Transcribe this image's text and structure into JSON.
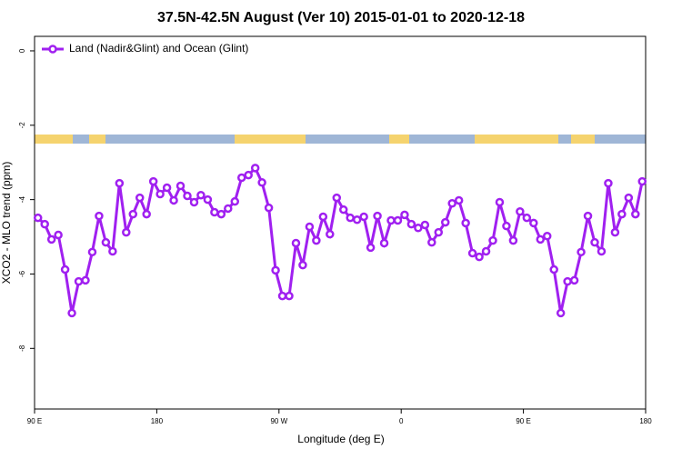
{
  "chart_data": {
    "type": "line",
    "title": "37.5N-42.5N August (Ver 10)   2015-01-01 to 2020-12-18",
    "x_label": "Longitude (deg E)",
    "y_label": "XCO2 - MLO trend (ppm)",
    "x": [
      92.5,
      97.5,
      102.5,
      107.5,
      112.5,
      117.5,
      122.5,
      127.5,
      132.5,
      137.5,
      142.5,
      147.5,
      152.5,
      157.5,
      162.5,
      167.5,
      172.5,
      177.5,
      182.5,
      187.5,
      192.5,
      197.5,
      202.5,
      207.5,
      212.5,
      217.5,
      222.5,
      227.5,
      232.5,
      237.5,
      242.5,
      247.5,
      252.5,
      257.5,
      262.5,
      267.5,
      272.5,
      277.5,
      282.5,
      287.5,
      292.5,
      297.5,
      302.5,
      307.5,
      312.5,
      317.5,
      322.5,
      327.5,
      332.5,
      337.5,
      342.5,
      347.5,
      352.5,
      357.5,
      362.5,
      367.5,
      372.5,
      377.5,
      382.5,
      387.5,
      392.5,
      397.5,
      402.5,
      407.5,
      412.5,
      417.5,
      422.5,
      427.5,
      432.5,
      437.5,
      442.5,
      447.5,
      452.5,
      457.5,
      462.5,
      467.5,
      472.5,
      477.5,
      482.5,
      487.5,
      492.5,
      497.5,
      502.5,
      507.5,
      512.5,
      517.5,
      522.5,
      527.5,
      532.5,
      537.5
    ],
    "series": [
      {
        "name": "Land (Nadir&Glint) and Ocean (Glint)",
        "color": "#a020f0",
        "values": [
          -4.49,
          -4.66,
          -5.07,
          -4.95,
          -5.88,
          -7.05,
          -6.2,
          -6.17,
          -5.41,
          -4.44,
          -5.15,
          -5.39,
          -3.56,
          -4.88,
          -4.39,
          -3.95,
          -4.39,
          -3.51,
          -3.85,
          -3.68,
          -4.02,
          -3.63,
          -3.9,
          -4.07,
          -3.88,
          -4.0,
          -4.34,
          -4.39,
          -4.24,
          -4.05,
          -3.41,
          -3.34,
          -3.15,
          -3.54,
          -4.22,
          -5.9,
          -6.59,
          -6.59,
          -5.17,
          -5.76,
          -4.73,
          -5.1,
          -4.46,
          -4.93,
          -3.95,
          -4.27,
          -4.49,
          -4.54,
          -4.46,
          -5.29,
          -4.44,
          -5.17,
          -4.56,
          -4.56,
          -4.41,
          -4.66,
          -4.76,
          -4.68,
          -5.15,
          -4.88,
          -4.61,
          -4.1,
          -4.02,
          -4.63,
          -5.44,
          -5.54,
          -5.39,
          -5.1,
          -4.07,
          -4.71,
          -5.1,
          -4.32,
          -4.49,
          -4.63,
          -5.07,
          -4.98,
          -5.88,
          -7.05,
          -6.2,
          -6.17,
          -5.41,
          -4.44,
          -5.15,
          -5.39,
          -3.56,
          -4.88,
          -4.39,
          -3.95,
          -4.39,
          -3.51
        ]
      }
    ],
    "xlim": [
      90,
      540
    ],
    "xticks": [
      {
        "value": 90,
        "label": "90 E"
      },
      180,
      {
        "value": 270,
        "label": "90 W"
      },
      {
        "value": 360,
        "label": "0"
      },
      {
        "value": 450,
        "label": "90 E"
      },
      {
        "value": 540,
        "label": "180"
      }
    ],
    "ylim": [
      -9.63,
      0.39
    ],
    "yticks": [
      0,
      -2,
      -4,
      -6,
      -8
    ],
    "legend": "top-left"
  }
}
